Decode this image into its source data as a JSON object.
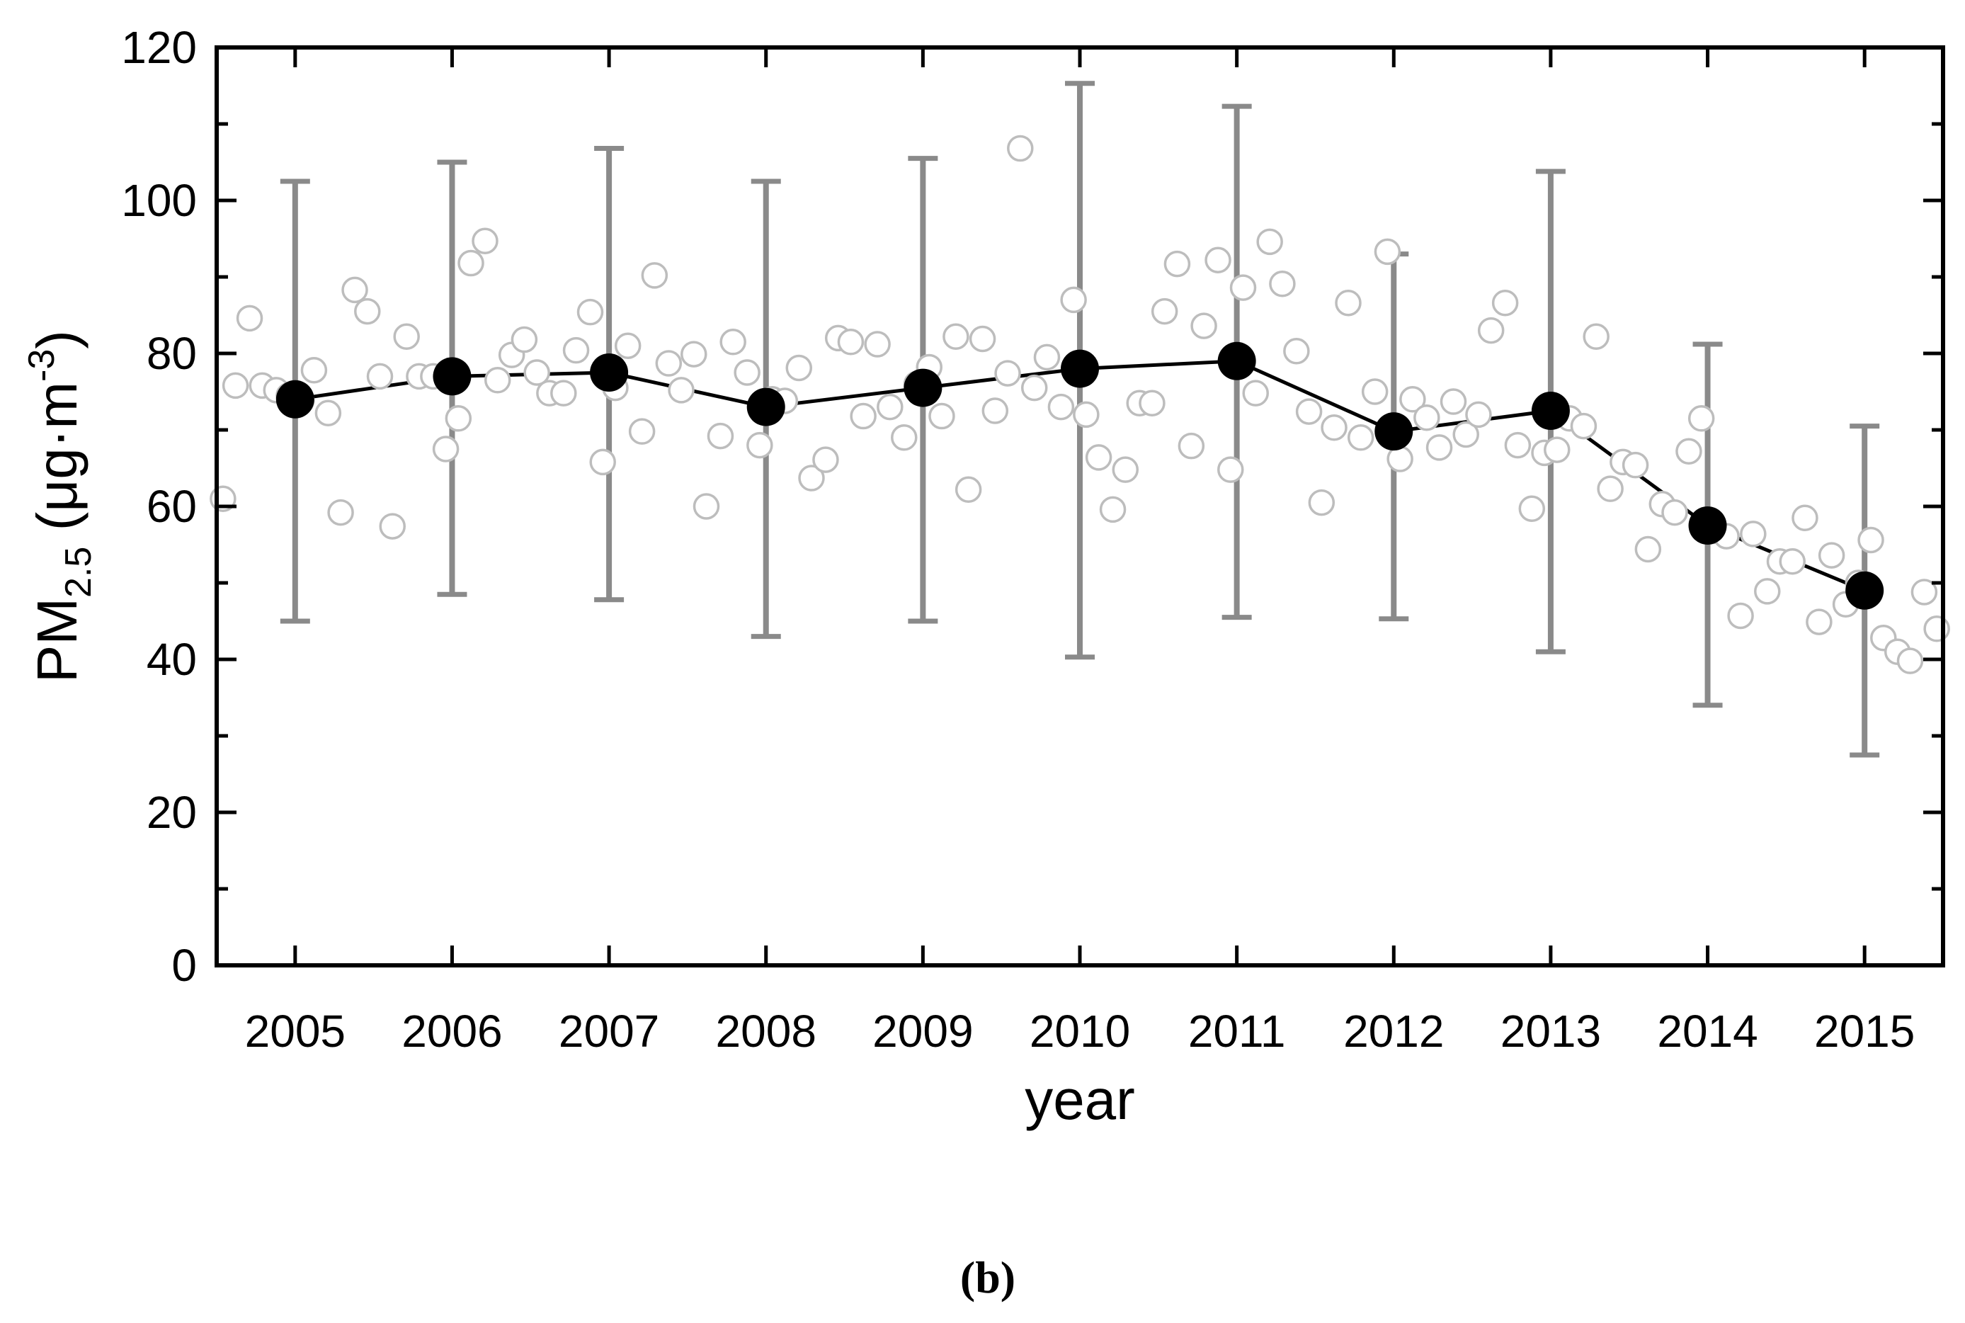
{
  "chart_data": {
    "type": "scatter",
    "xlabel": "year",
    "ylabel": {
      "main": "PM",
      "subscript": "2.5",
      "unit_open": " (μg·m",
      "unit_superscript": "-3",
      "unit_close": ")"
    },
    "panel_label": "(b)",
    "ylim": [
      0,
      120
    ],
    "xlim": [
      2004.5,
      2015.5
    ],
    "x_tick_labels": [
      "2005",
      "2006",
      "2007",
      "2008",
      "2009",
      "2010",
      "2011",
      "2012",
      "2013",
      "2014",
      "2015"
    ],
    "y_tick_labels": [
      "0",
      "20",
      "40",
      "60",
      "80",
      "100",
      "120"
    ],
    "grid": false,
    "colors": {
      "annual_mean_marker": "#000000",
      "monthly_marker_fill": "#ffffff",
      "monthly_marker_stroke": "#bdbdbd",
      "error_bar": "#8a8a8a",
      "mean_line": "#000000"
    },
    "annual_means": [
      {
        "year": 2005,
        "mean": 74.0,
        "low": 45.0,
        "high": 102.5
      },
      {
        "year": 2006,
        "mean": 77.0,
        "low": 48.5,
        "high": 105.0
      },
      {
        "year": 2007,
        "mean": 77.5,
        "low": 47.8,
        "high": 106.8
      },
      {
        "year": 2008,
        "mean": 73.0,
        "low": 43.0,
        "high": 102.5
      },
      {
        "year": 2009,
        "mean": 75.5,
        "low": 45.0,
        "high": 105.5
      },
      {
        "year": 2010,
        "mean": 78.0,
        "low": 40.3,
        "high": 115.3
      },
      {
        "year": 2011,
        "mean": 79.0,
        "low": 45.5,
        "high": 112.3
      },
      {
        "year": 2012,
        "mean": 69.8,
        "low": 45.3,
        "high": 93.0
      },
      {
        "year": 2013,
        "mean": 72.5,
        "low": 41.0,
        "high": 103.8
      },
      {
        "year": 2014,
        "mean": 57.5,
        "low": 34.0,
        "high": 81.2
      },
      {
        "year": 2015,
        "mean": 49.0,
        "low": 27.5,
        "high": 70.5
      }
    ],
    "monthly_values": [
      [
        2004.54,
        61.0
      ],
      [
        2004.62,
        75.8
      ],
      [
        2004.71,
        84.6
      ],
      [
        2004.79,
        75.8
      ],
      [
        2004.88,
        75.2
      ],
      [
        2004.96,
        74.5
      ],
      [
        2005.04,
        73.8
      ],
      [
        2005.12,
        77.8
      ],
      [
        2005.21,
        72.2
      ],
      [
        2005.29,
        59.2
      ],
      [
        2005.38,
        88.3
      ],
      [
        2005.46,
        85.5
      ],
      [
        2005.54,
        77.0
      ],
      [
        2005.62,
        57.4
      ],
      [
        2005.71,
        82.2
      ],
      [
        2005.79,
        77.0
      ],
      [
        2005.88,
        77.0
      ],
      [
        2005.96,
        67.5
      ],
      [
        2006.04,
        71.5
      ],
      [
        2006.12,
        91.8
      ],
      [
        2006.21,
        94.7
      ],
      [
        2006.29,
        76.5
      ],
      [
        2006.38,
        79.8
      ],
      [
        2006.46,
        81.8
      ],
      [
        2006.54,
        77.5
      ],
      [
        2006.62,
        74.8
      ],
      [
        2006.71,
        74.8
      ],
      [
        2006.79,
        80.4
      ],
      [
        2006.88,
        85.4
      ],
      [
        2006.96,
        65.8
      ],
      [
        2007.04,
        75.5
      ],
      [
        2007.12,
        81.0
      ],
      [
        2007.21,
        69.8
      ],
      [
        2007.29,
        90.2
      ],
      [
        2007.38,
        78.7
      ],
      [
        2007.46,
        75.2
      ],
      [
        2007.54,
        79.9
      ],
      [
        2007.62,
        60.0
      ],
      [
        2007.71,
        69.2
      ],
      [
        2007.79,
        81.5
      ],
      [
        2007.88,
        77.5
      ],
      [
        2007.96,
        68.0
      ],
      [
        2008.04,
        74.0
      ],
      [
        2008.12,
        73.8
      ],
      [
        2008.21,
        78.1
      ],
      [
        2008.29,
        63.7
      ],
      [
        2008.38,
        66.1
      ],
      [
        2008.46,
        82.0
      ],
      [
        2008.54,
        81.5
      ],
      [
        2008.62,
        71.8
      ],
      [
        2008.71,
        81.2
      ],
      [
        2008.79,
        73.0
      ],
      [
        2008.88,
        69.0
      ],
      [
        2008.96,
        76.0
      ],
      [
        2009.04,
        78.2
      ],
      [
        2009.12,
        71.8
      ],
      [
        2009.21,
        82.2
      ],
      [
        2009.29,
        62.2
      ],
      [
        2009.38,
        81.9
      ],
      [
        2009.46,
        72.5
      ],
      [
        2009.54,
        77.4
      ],
      [
        2009.62,
        106.8
      ],
      [
        2009.71,
        75.5
      ],
      [
        2009.79,
        79.5
      ],
      [
        2009.88,
        73.0
      ],
      [
        2009.96,
        87.0
      ],
      [
        2010.04,
        72.0
      ],
      [
        2010.12,
        66.4
      ],
      [
        2010.21,
        59.6
      ],
      [
        2010.29,
        64.8
      ],
      [
        2010.38,
        73.5
      ],
      [
        2010.46,
        73.5
      ],
      [
        2010.54,
        85.5
      ],
      [
        2010.62,
        91.7
      ],
      [
        2010.71,
        67.9
      ],
      [
        2010.79,
        83.6
      ],
      [
        2010.88,
        92.2
      ],
      [
        2010.96,
        64.8
      ],
      [
        2011.04,
        88.6
      ],
      [
        2011.12,
        74.8
      ],
      [
        2011.21,
        94.6
      ],
      [
        2011.29,
        89.1
      ],
      [
        2011.38,
        80.3
      ],
      [
        2011.46,
        72.4
      ],
      [
        2011.54,
        60.5
      ],
      [
        2011.62,
        70.3
      ],
      [
        2011.71,
        86.6
      ],
      [
        2011.79,
        69.0
      ],
      [
        2011.88,
        75.0
      ],
      [
        2011.96,
        93.3
      ],
      [
        2012.04,
        66.2
      ],
      [
        2012.12,
        74.0
      ],
      [
        2012.21,
        71.6
      ],
      [
        2012.29,
        67.7
      ],
      [
        2012.38,
        73.7
      ],
      [
        2012.46,
        69.4
      ],
      [
        2012.54,
        72.0
      ],
      [
        2012.62,
        83.0
      ],
      [
        2012.71,
        86.6
      ],
      [
        2012.79,
        68.0
      ],
      [
        2012.88,
        59.7
      ],
      [
        2012.96,
        67.0
      ],
      [
        2013.04,
        67.4
      ],
      [
        2013.12,
        71.5
      ],
      [
        2013.21,
        70.5
      ],
      [
        2013.29,
        82.2
      ],
      [
        2013.38,
        62.3
      ],
      [
        2013.46,
        65.8
      ],
      [
        2013.54,
        65.4
      ],
      [
        2013.62,
        54.4
      ],
      [
        2013.71,
        60.3
      ],
      [
        2013.79,
        59.2
      ],
      [
        2013.88,
        67.2
      ],
      [
        2013.96,
        71.5
      ],
      [
        2014.04,
        56.8
      ],
      [
        2014.12,
        56.1
      ],
      [
        2014.21,
        45.7
      ],
      [
        2014.29,
        56.4
      ],
      [
        2014.38,
        48.9
      ],
      [
        2014.46,
        52.8
      ],
      [
        2014.54,
        52.8
      ],
      [
        2014.62,
        58.5
      ],
      [
        2014.71,
        44.9
      ],
      [
        2014.79,
        53.6
      ],
      [
        2014.88,
        47.2
      ],
      [
        2014.96,
        50.0
      ],
      [
        2015.04,
        55.6
      ],
      [
        2015.12,
        42.8
      ],
      [
        2015.21,
        41.0
      ],
      [
        2015.29,
        39.8
      ],
      [
        2015.38,
        48.8
      ],
      [
        2015.46,
        44.0
      ]
    ]
  }
}
